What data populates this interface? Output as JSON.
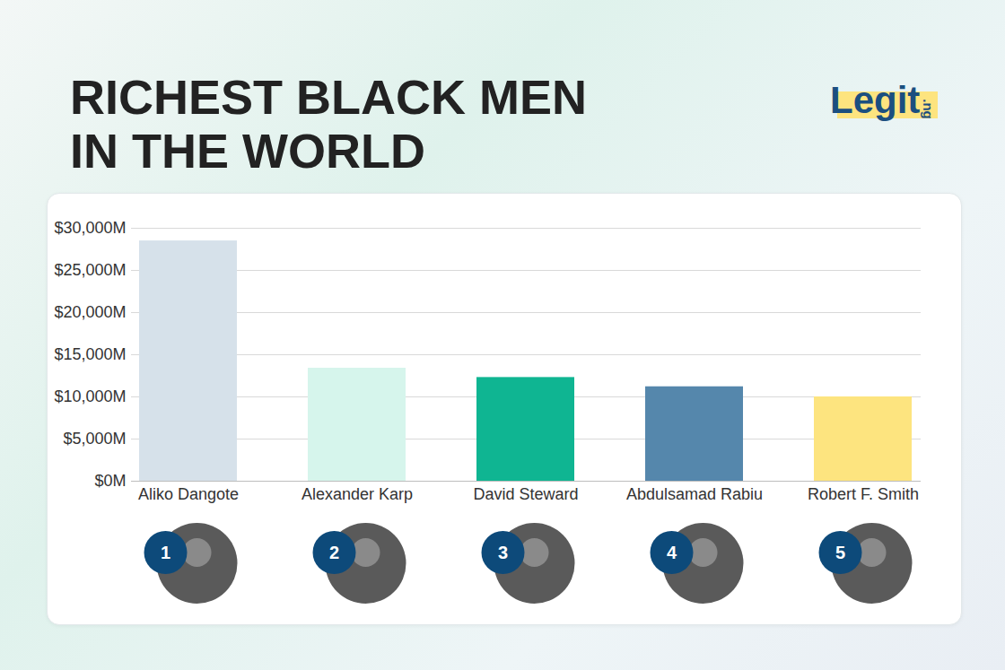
{
  "chart_data": {
    "type": "bar",
    "title": "RICHEST BLACK MEN IN THE WORLD",
    "logo": "Legit.ng",
    "categories": [
      "Aliko Dangote",
      "Alexander Karp",
      "David Steward",
      "Abdulsamad Rabiu",
      "Robert F. Smith"
    ],
    "values": [
      28500,
      13400,
      12300,
      11200,
      10000
    ],
    "colors": [
      "#d6e1ea",
      "#d6f5ec",
      "#0fb592",
      "#5587ac",
      "#fde47f"
    ],
    "ranks": [
      1,
      2,
      3,
      4,
      5
    ],
    "ylim": [
      0,
      30000
    ],
    "yticks": [
      {
        "value": 0,
        "label": "$0M"
      },
      {
        "value": 5000,
        "label": "$5,000M"
      },
      {
        "value": 10000,
        "label": "$10,000M"
      },
      {
        "value": 15000,
        "label": "$15,000M"
      },
      {
        "value": 20000,
        "label": "$20,000M"
      },
      {
        "value": 25000,
        "label": "$25,000M"
      },
      {
        "value": 30000,
        "label": "$30,000M"
      }
    ],
    "grid": true
  }
}
